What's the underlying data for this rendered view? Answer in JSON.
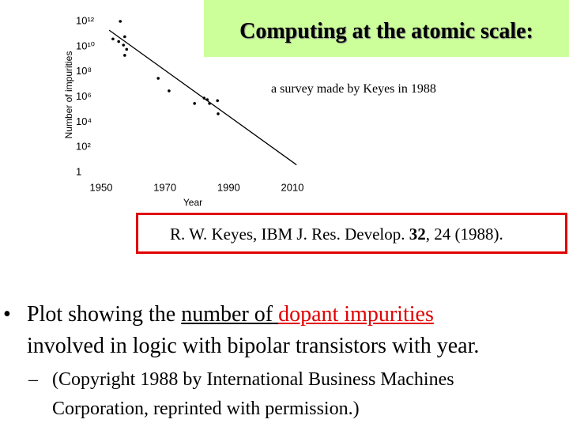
{
  "title": "Computing at the atomic scale:",
  "subtitle": "a survey made by Keyes in 1988",
  "citation": [
    "R. W. Keyes, IBM J. Res. Develop. ",
    "32",
    ", 24 (1988)."
  ],
  "bullets": [
    [
      "Plot showing the ",
      "number of ",
      "dopant impurities",
      " involved in logic with bipolar transistors with year."
    ]
  ],
  "sub_bullets": [
    "(Copyright 1988 by International Business Machines Corporation, reprinted with permission.)"
  ],
  "chart_data": {
    "type": "scatter",
    "x_label": "Year",
    "y_label": "Number of impurities",
    "x": [
      1956,
      1953.7,
      1955.5,
      1957.4,
      1957,
      1958,
      1957.4,
      1967.9,
      1971.3,
      1979.3,
      1982.3,
      1983.3,
      1984,
      1986.5,
      1986.7
    ],
    "values": [
      1000000000000,
      40000000000,
      25000000000,
      60000000000,
      13000000000,
      6000000000,
      2000000000,
      30000000,
      3000000,
      300000,
      800000,
      600000,
      300000,
      500000,
      45000
    ],
    "color": "#000000",
    "trend_line": {
      "x": [
        1952.5,
        2011.3
      ],
      "values": [
        200000000000,
        4
      ],
      "color": "#000000"
    },
    "log_y": true,
    "xlim": [
      1950,
      2010
    ],
    "xticks": [
      1950,
      1970,
      1990,
      2010
    ],
    "ylim": [
      1,
      1000000000000
    ],
    "yticks": [
      1,
      {
        "value": 100,
        "label": "10²"
      },
      {
        "value": 10000,
        "label": "10⁴"
      },
      {
        "value": 1000000,
        "label": "10⁶"
      },
      {
        "value": 100000000,
        "label": "10⁸"
      },
      {
        "value": 10000000000,
        "label": "10¹⁰"
      },
      {
        "value": 1000000000000,
        "label": "10¹²"
      }
    ],
    "grid": false
  }
}
